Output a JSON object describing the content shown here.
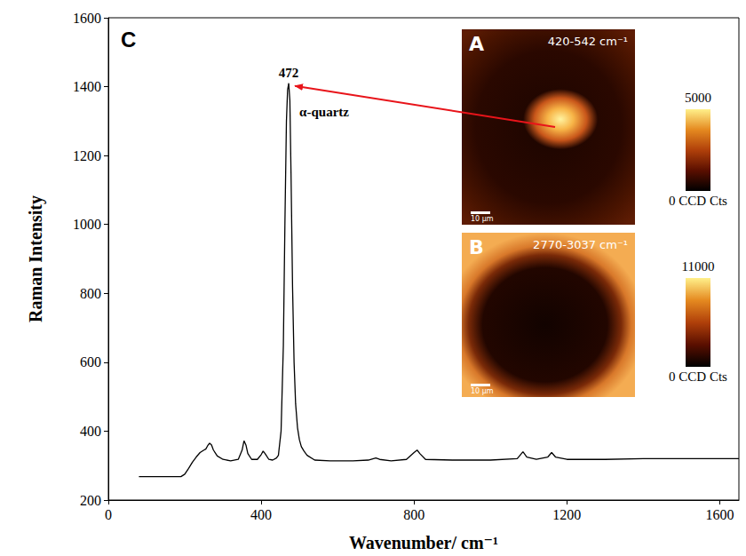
{
  "chart_data": {
    "type": "line",
    "panel": "C",
    "x_label": "Wavenumber/ cm⁻¹",
    "y_label": "Raman Intensity",
    "xlim": [
      0,
      1650
    ],
    "xticks": [
      0,
      400,
      800,
      1200,
      1600
    ],
    "ylim": [
      200,
      1600
    ],
    "yticks": [
      200,
      400,
      600,
      800,
      1000,
      1200,
      1400,
      1600
    ],
    "grid": false,
    "color": "#000000",
    "x": [
      80,
      100,
      150,
      190,
      200,
      210,
      220,
      230,
      240,
      250,
      255,
      260,
      265,
      270,
      275,
      285,
      300,
      320,
      340,
      350,
      355,
      360,
      365,
      375,
      390,
      400,
      405,
      410,
      420,
      430,
      440,
      445,
      452,
      458,
      462,
      466,
      469,
      472,
      475,
      478,
      482,
      486,
      490,
      495,
      500,
      505,
      512,
      520,
      540,
      580,
      640,
      680,
      700,
      710,
      740,
      780,
      800,
      808,
      815,
      830,
      900,
      1000,
      1070,
      1085,
      1095,
      1120,
      1150,
      1160,
      1170,
      1200,
      1300,
      1400,
      1500,
      1600,
      1650
    ],
    "values": [
      268,
      268,
      268,
      268,
      275,
      292,
      310,
      325,
      338,
      345,
      348,
      358,
      365,
      360,
      345,
      328,
      318,
      314,
      318,
      345,
      372,
      360,
      335,
      318,
      318,
      332,
      342,
      335,
      318,
      316,
      322,
      330,
      400,
      650,
      1000,
      1300,
      1390,
      1410,
      1360,
      1150,
      820,
      600,
      480,
      410,
      375,
      355,
      342,
      330,
      316,
      314,
      314,
      316,
      322,
      318,
      314,
      318,
      338,
      345,
      335,
      318,
      316,
      316,
      320,
      340,
      325,
      318,
      325,
      338,
      325,
      318,
      318,
      320,
      320,
      320,
      320
    ],
    "peak": {
      "x": 472,
      "y": 1410,
      "label": "472",
      "name": "α-quartz"
    },
    "insets": [
      {
        "letter": "A",
        "title": "420-542 cm⁻¹",
        "scale_bar": "10 μm",
        "colorbar": {
          "range": [
            0,
            5000
          ],
          "ticks": [
            {
              "value": 0,
              "label": "0 CCD Cts"
            },
            5000
          ]
        }
      },
      {
        "letter": "B",
        "title": "2770-3037 cm⁻¹",
        "scale_bar": "10 μm",
        "colorbar": {
          "range": [
            0,
            11000
          ],
          "ticks": [
            {
              "value": 0,
              "label": "0 CCD Cts"
            },
            11000
          ]
        }
      }
    ]
  }
}
